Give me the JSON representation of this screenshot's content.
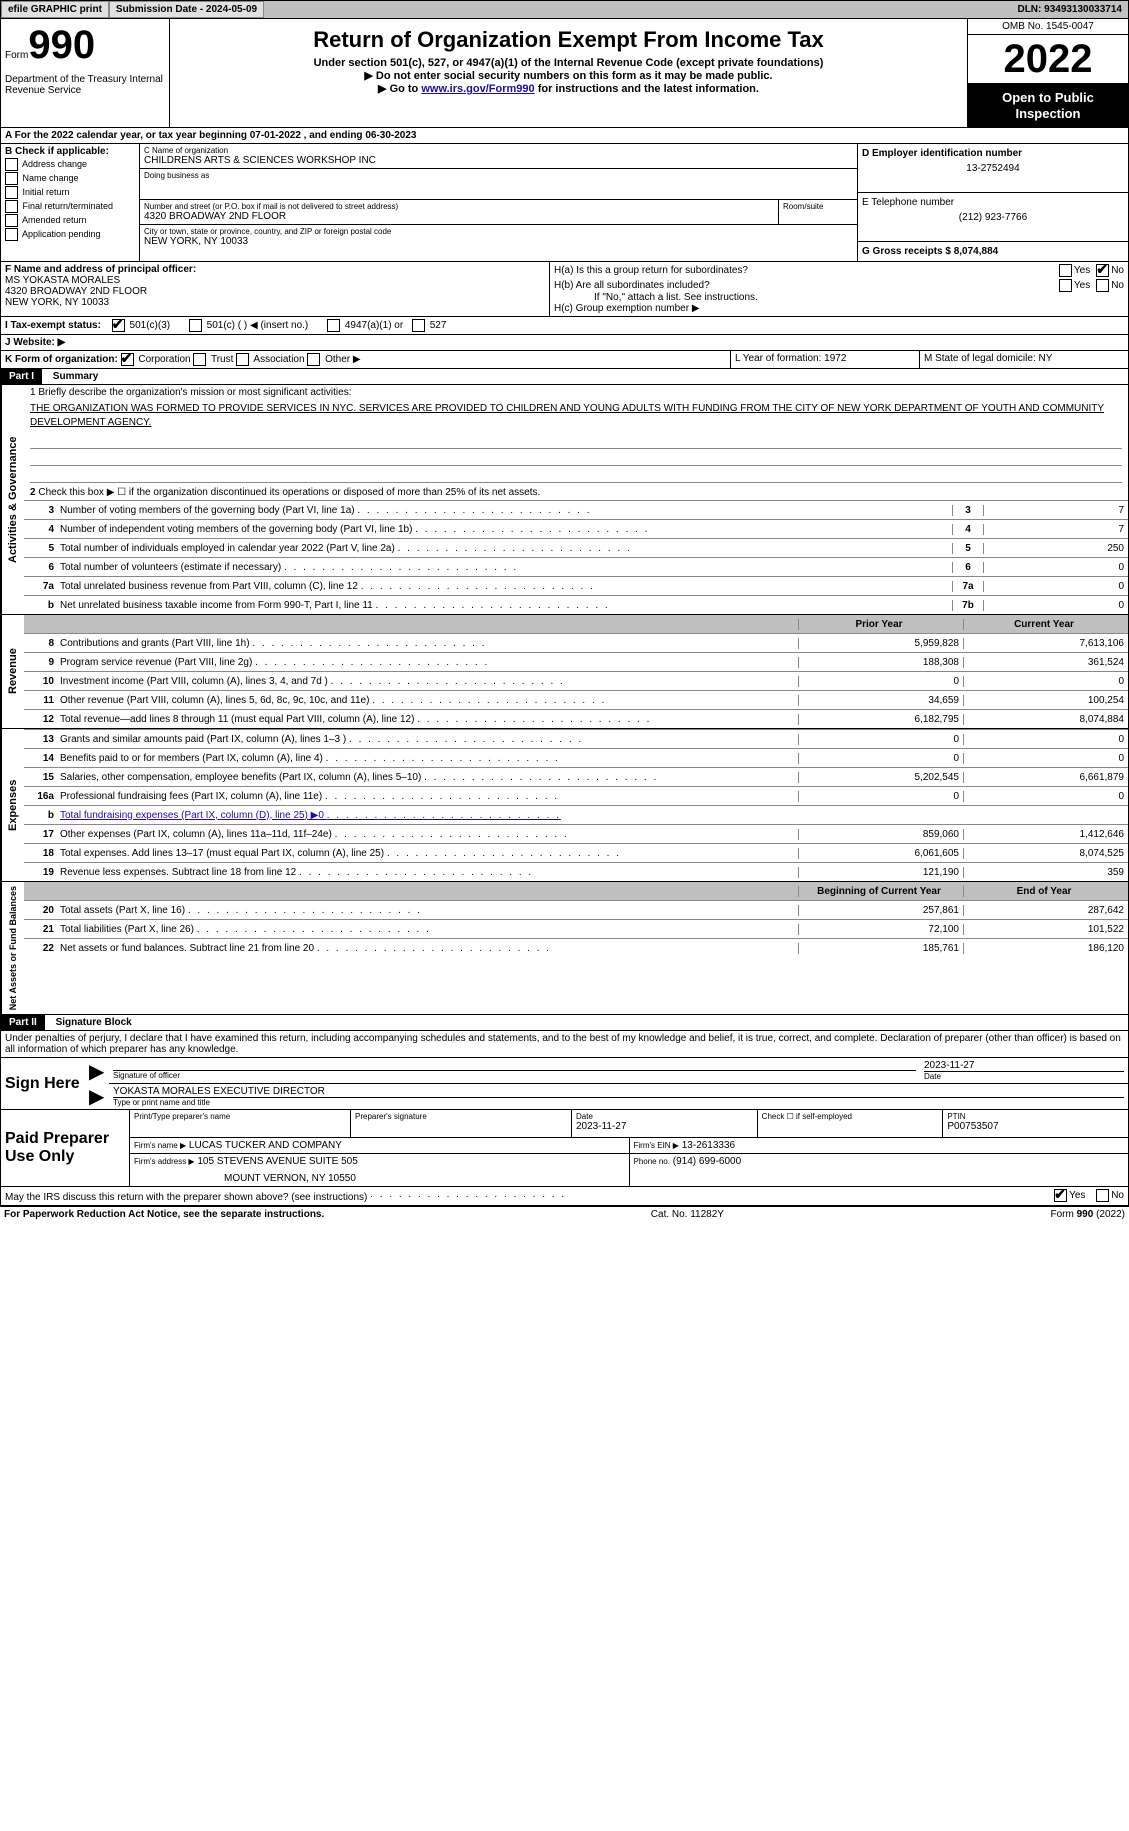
{
  "topbar": {
    "efile": "efile GRAPHIC print",
    "submission_label": "Submission Date - 2024-05-09",
    "dln_label": "DLN: 93493130033714"
  },
  "header": {
    "form_prefix": "Form",
    "form_no": "990",
    "dept": "Department of the Treasury Internal Revenue Service",
    "main_title": "Return of Organization Exempt From Income Tax",
    "sub": "Under section 501(c), 527, or 4947(a)(1) of the Internal Revenue Code (except private foundations)",
    "inst1": "▶ Do not enter social security numbers on this form as it may be made public.",
    "inst2_pre": "▶ Go to ",
    "inst2_link": "www.irs.gov/Form990",
    "inst2_post": " for instructions and the latest information.",
    "omb": "OMB No. 1545-0047",
    "year": "2022",
    "open": "Open to Public Inspection"
  },
  "section_a": {
    "label": "A For the 2022 calendar year, or tax year beginning 07-01-2022    , and ending 06-30-2023",
    "b_label": "B Check if applicable:",
    "b_opts": [
      "Address change",
      "Name change",
      "Initial return",
      "Final return/terminated",
      "Amended return",
      "Application pending"
    ],
    "c_label": "C Name of organization",
    "c_name": "CHILDRENS ARTS & SCIENCES WORKSHOP INC",
    "dba_label": "Doing business as",
    "street_label": "Number and street (or P.O. box if mail is not delivered to street address)",
    "street": "4320 BROADWAY 2ND FLOOR",
    "room_label": "Room/suite",
    "city_label": "City or town, state or province, country, and ZIP or foreign postal code",
    "city": "NEW YORK, NY  10033",
    "d_label": "D Employer identification number",
    "d_val": "13-2752494",
    "e_label": "E Telephone number",
    "e_val": "(212) 923-7766",
    "g_label": "G Gross receipts $ 8,074,884",
    "f_label": "F  Name and address of principal officer:",
    "f_name": "MS YOKASTA MORALES",
    "f_addr1": "4320 BROADWAY 2ND FLOOR",
    "f_addr2": "NEW YORK, NY  10033",
    "ha_label": "H(a)  Is this a group return for subordinates?",
    "hb_label": "H(b)  Are all subordinates included?",
    "hb_note": "If \"No,\" attach a list. See instructions.",
    "hc_label": "H(c)  Group exemption number ▶",
    "yes": "Yes",
    "no": "No",
    "i_label": "I   Tax-exempt status:",
    "i_1": "501(c)(3)",
    "i_2": "501(c) (  ) ◀ (insert no.)",
    "i_3": "4947(a)(1) or",
    "i_4": "527",
    "j_label": "J   Website: ▶",
    "k_label": "K Form of organization:",
    "k_opts": [
      "Corporation",
      "Trust",
      "Association",
      "Other ▶"
    ],
    "l_label": "L Year of formation: 1972",
    "m_label": "M State of legal domicile: NY"
  },
  "part1": {
    "header": "Part I",
    "title": "Summary",
    "line1_label": "1  Briefly describe the organization's mission or most significant activities:",
    "mission": "THE ORGANIZATION WAS FORMED TO PROVIDE SERVICES IN NYC. SERVICES ARE PROVIDED TO CHILDREN AND YOUNG ADULTS WITH FUNDING FROM THE CITY OF NEW YORK DEPARTMENT OF YOUTH AND COMMUNITY DEVELOPMENT AGENCY.",
    "tab_activities": "Activities & Governance",
    "tab_revenue": "Revenue",
    "tab_expenses": "Expenses",
    "tab_netassets": "Net Assets or Fund Balances",
    "line2": "Check this box ▶ ☐ if the organization discontinued its operations or disposed of more than 25% of its net assets.",
    "lines_top": [
      {
        "n": "3",
        "txt": "Number of voting members of the governing body (Part VI, line 1a)",
        "box": "3",
        "val": "7"
      },
      {
        "n": "4",
        "txt": "Number of independent voting members of the governing body (Part VI, line 1b)",
        "box": "4",
        "val": "7"
      },
      {
        "n": "5",
        "txt": "Total number of individuals employed in calendar year 2022 (Part V, line 2a)",
        "box": "5",
        "val": "250"
      },
      {
        "n": "6",
        "txt": "Total number of volunteers (estimate if necessary)",
        "box": "6",
        "val": "0"
      },
      {
        "n": "7a",
        "txt": "Total unrelated business revenue from Part VIII, column (C), line 12",
        "box": "7a",
        "val": "0"
      },
      {
        "n": "b",
        "txt": "Net unrelated business taxable income from Form 990-T, Part I, line 11",
        "box": "7b",
        "val": "0"
      }
    ],
    "col_prior": "Prior Year",
    "col_current": "Current Year",
    "lines_rev": [
      {
        "n": "8",
        "txt": "Contributions and grants (Part VIII, line 1h)",
        "p": "5,959,828",
        "c": "7,613,106"
      },
      {
        "n": "9",
        "txt": "Program service revenue (Part VIII, line 2g)",
        "p": "188,308",
        "c": "361,524"
      },
      {
        "n": "10",
        "txt": "Investment income (Part VIII, column (A), lines 3, 4, and 7d )",
        "p": "0",
        "c": "0"
      },
      {
        "n": "11",
        "txt": "Other revenue (Part VIII, column (A), lines 5, 6d, 8c, 9c, 10c, and 11e)",
        "p": "34,659",
        "c": "100,254"
      },
      {
        "n": "12",
        "txt": "Total revenue—add lines 8 through 11 (must equal Part VIII, column (A), line 12)",
        "p": "6,182,795",
        "c": "8,074,884"
      }
    ],
    "lines_exp": [
      {
        "n": "13",
        "txt": "Grants and similar amounts paid (Part IX, column (A), lines 1–3 )",
        "p": "0",
        "c": "0"
      },
      {
        "n": "14",
        "txt": "Benefits paid to or for members (Part IX, column (A), line 4)",
        "p": "0",
        "c": "0"
      },
      {
        "n": "15",
        "txt": "Salaries, other compensation, employee benefits (Part IX, column (A), lines 5–10)",
        "p": "5,202,545",
        "c": "6,661,879"
      },
      {
        "n": "16a",
        "txt": "Professional fundraising fees (Part IX, column (A), line 11e)",
        "p": "0",
        "c": "0"
      },
      {
        "n": "b",
        "txt": "Total fundraising expenses (Part IX, column (D), line 25) ▶0",
        "p": "",
        "c": "",
        "shaded": true,
        "link": true
      },
      {
        "n": "17",
        "txt": "Other expenses (Part IX, column (A), lines 11a–11d, 11f–24e)",
        "p": "859,060",
        "c": "1,412,646"
      },
      {
        "n": "18",
        "txt": "Total expenses. Add lines 13–17 (must equal Part IX, column (A), line 25)",
        "p": "6,061,605",
        "c": "8,074,525"
      },
      {
        "n": "19",
        "txt": "Revenue less expenses. Subtract line 18 from line 12",
        "p": "121,190",
        "c": "359"
      }
    ],
    "col_begin": "Beginning of Current Year",
    "col_end": "End of Year",
    "lines_net": [
      {
        "n": "20",
        "txt": "Total assets (Part X, line 16)",
        "p": "257,861",
        "c": "287,642"
      },
      {
        "n": "21",
        "txt": "Total liabilities (Part X, line 26)",
        "p": "72,100",
        "c": "101,522"
      },
      {
        "n": "22",
        "txt": "Net assets or fund balances. Subtract line 21 from line 20",
        "p": "185,761",
        "c": "186,120"
      }
    ]
  },
  "part2": {
    "header": "Part II",
    "title": "Signature Block",
    "perjury": "Under penalties of perjury, I declare that I have examined this return, including accompanying schedules and statements, and to the best of my knowledge and belief, it is true, correct, and complete. Declaration of preparer (other than officer) is based on all information of which preparer has any knowledge.",
    "sign_here": "Sign Here",
    "sig_date": "2023-11-27",
    "sig_officer_label": "Signature of officer",
    "date_label": "Date",
    "officer_name": "YOKASTA MORALES EXECUTIVE DIRECTOR",
    "officer_name_label": "Type or print name and title",
    "paid_prep": "Paid Preparer Use Only",
    "prep_name_label": "Print/Type preparer's name",
    "prep_sig_label": "Preparer's signature",
    "prep_date_label": "Date",
    "prep_date": "2023-11-27",
    "check_self": "Check ☐ if self-employed",
    "ptin_label": "PTIN",
    "ptin": "P00753507",
    "firm_name_label": "Firm's name    ▶",
    "firm_name": "LUCAS TUCKER AND COMPANY",
    "firm_ein_label": "Firm's EIN ▶",
    "firm_ein": "13-2613336",
    "firm_addr_label": "Firm's address ▶",
    "firm_addr1": "105 STEVENS AVENUE SUITE 505",
    "firm_addr2": "MOUNT VERNON, NY  10550",
    "phone_label": "Phone no.",
    "phone": "(914) 699-6000",
    "discuss": "May the IRS discuss this return with the preparer shown above? (see instructions)"
  },
  "footer": {
    "paperwork": "For Paperwork Reduction Act Notice, see the separate instructions.",
    "cat": "Cat. No. 11282Y",
    "form": "Form 990 (2022)"
  }
}
